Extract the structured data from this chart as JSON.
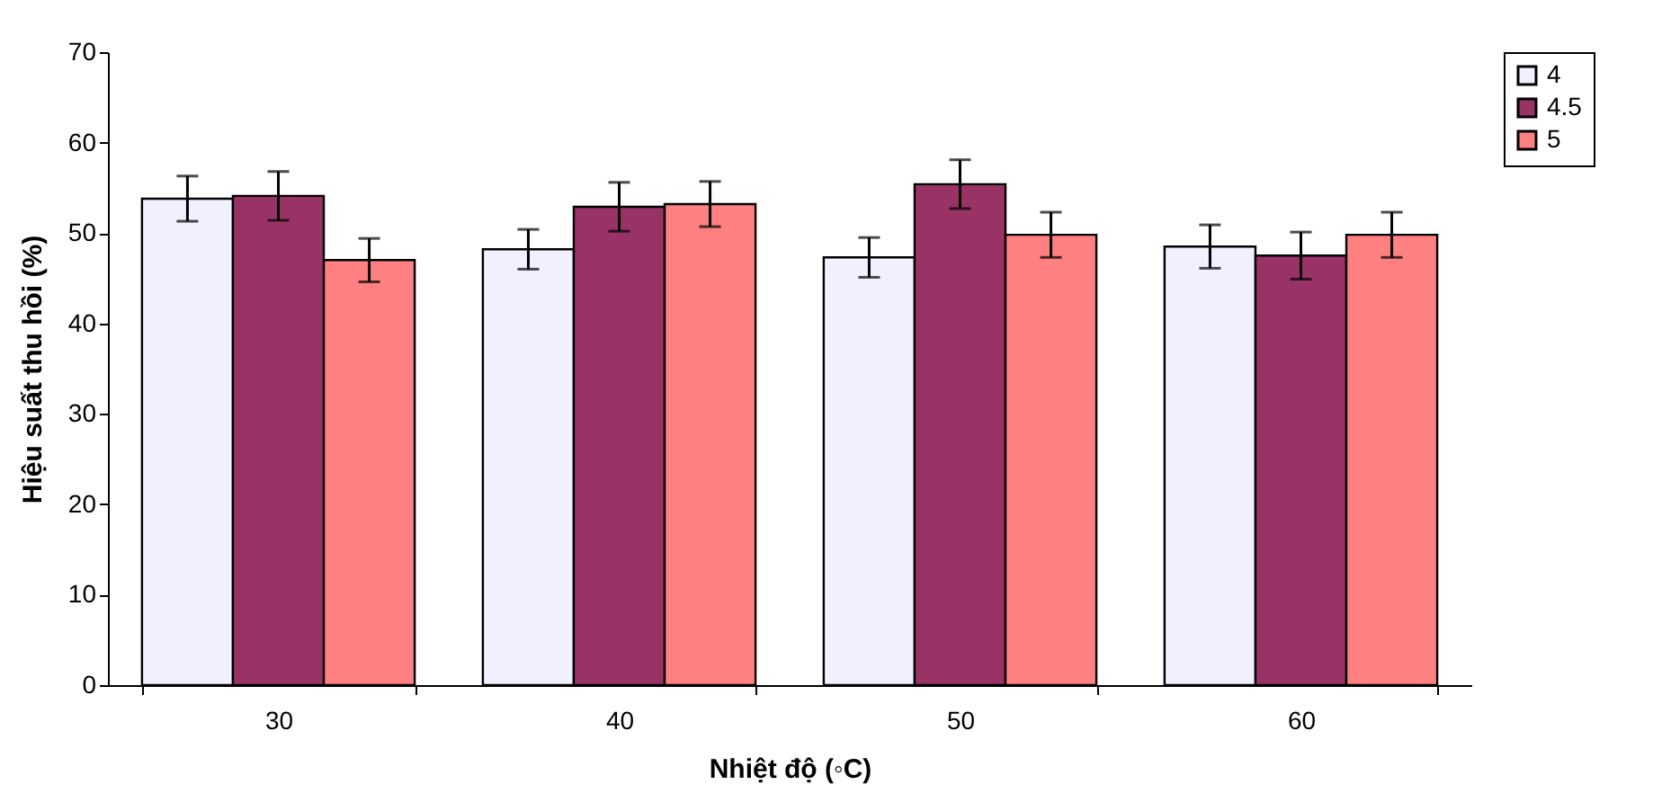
{
  "chart_data": {
    "type": "bar",
    "xlabel": "Nhiệt độ (◦C)",
    "ylabel": "Hiệu suất thu hồi (%)",
    "categories": [
      "30",
      "40",
      "50",
      "60"
    ],
    "series": [
      {
        "name": "4",
        "color": "#f0f0ff",
        "values": [
          53.8,
          48.2,
          47.3,
          48.5
        ],
        "errors": [
          2.5,
          2.2,
          2.2,
          2.4
        ]
      },
      {
        "name": "4.5",
        "color": "#993366",
        "values": [
          54.1,
          52.9,
          55.4,
          47.5
        ],
        "errors": [
          2.7,
          2.7,
          2.7,
          2.6
        ]
      },
      {
        "name": "5",
        "color": "#ff8080",
        "values": [
          47.0,
          53.2,
          49.8,
          49.8
        ],
        "errors": [
          2.4,
          2.5,
          2.5,
          2.5
        ]
      }
    ],
    "ylim": [
      0,
      70
    ],
    "yticks": [
      0,
      10,
      20,
      30,
      40,
      50,
      60,
      70
    ],
    "grid": false,
    "legend": "right"
  }
}
